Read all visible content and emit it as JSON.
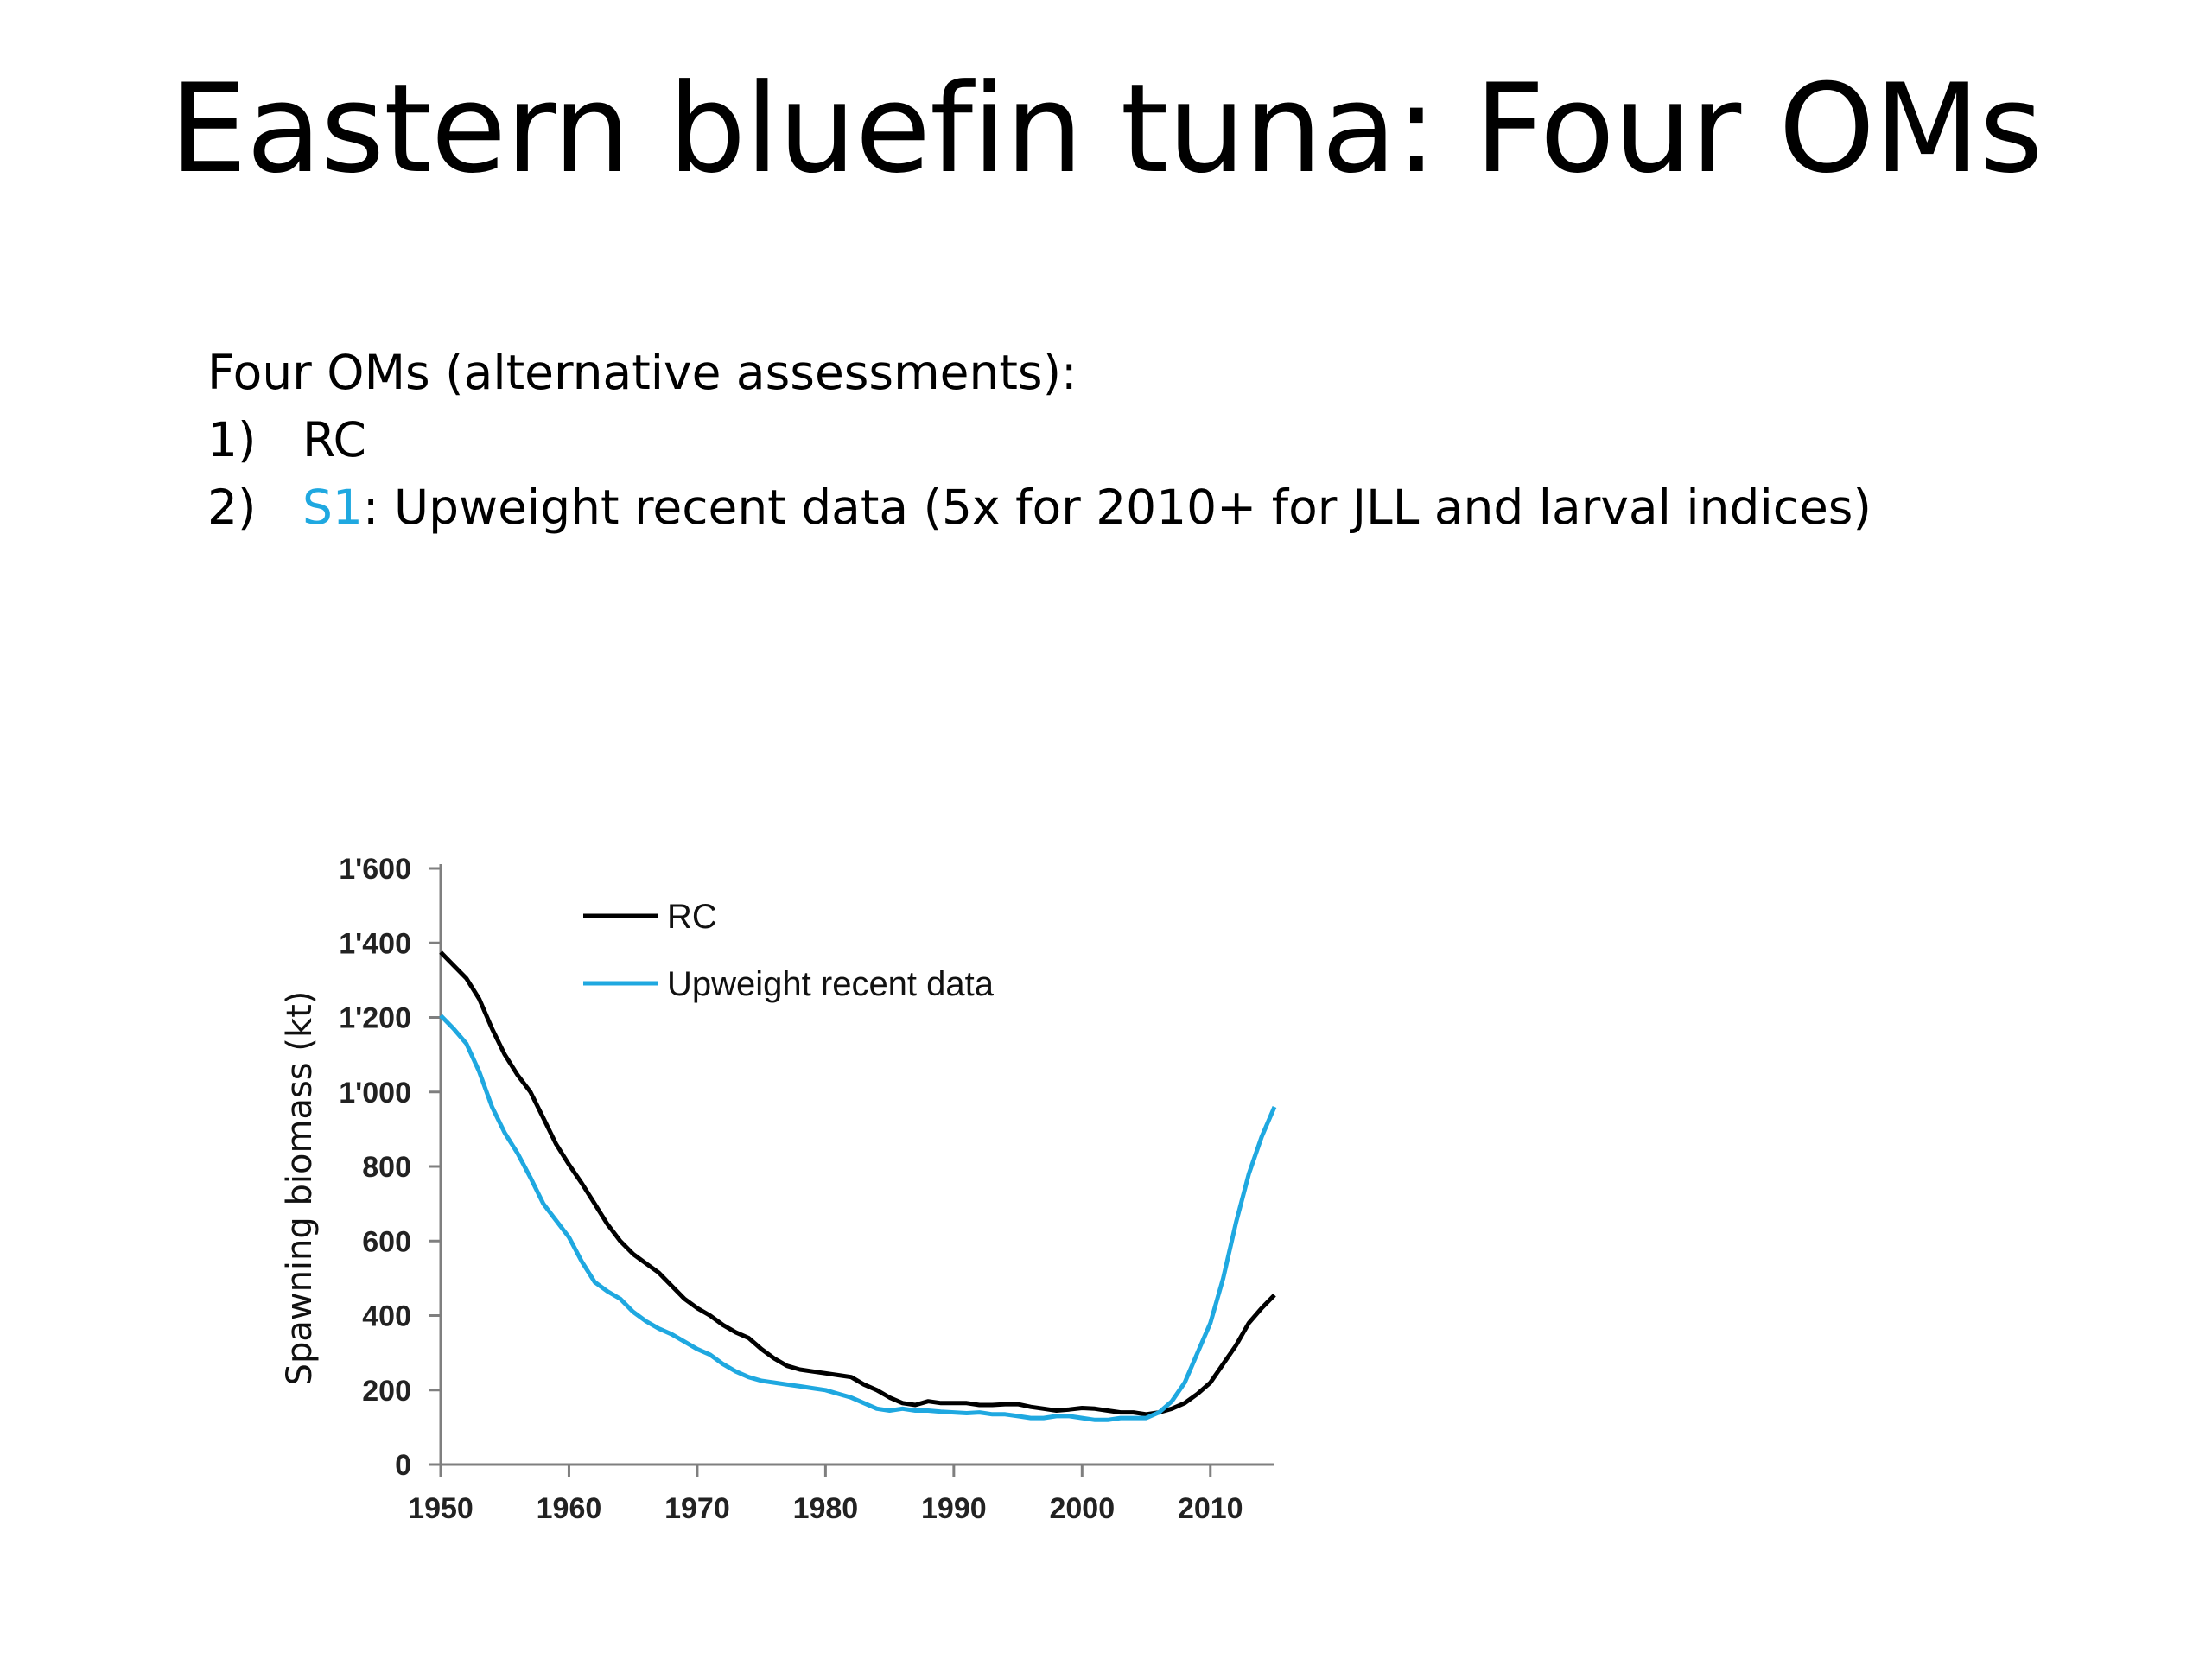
{
  "slide": {
    "title": "Eastern bluefin tuna: Four OMs",
    "intro": "Four OMs (alternative assessments):",
    "items": [
      {
        "num": "1)",
        "highlight": "",
        "text": "RC"
      },
      {
        "num": "2)",
        "highlight": "S1",
        "text": ": Upweight recent data (5x for 2010+ for JLL and larval indices)"
      }
    ]
  },
  "colors": {
    "rc": "#000000",
    "upweight": "#1fa8e0",
    "axis": "#7f7f7f",
    "highlight": "#1fa8e0"
  },
  "chart_data": {
    "type": "line",
    "title": "",
    "xlabel": "",
    "ylabel": "Spawning  biomass (kt)",
    "xlim": [
      1950,
      2015
    ],
    "ylim": [
      0,
      1600
    ],
    "xticks": [
      1950,
      1960,
      1970,
      1980,
      1990,
      2000,
      2010
    ],
    "xtick_labels": [
      "1950",
      "1960",
      "1970",
      "1980",
      "1990",
      "2000",
      "2010"
    ],
    "yticks": [
      0,
      200,
      400,
      600,
      800,
      1000,
      1200,
      1400,
      1600
    ],
    "ytick_labels": [
      "0",
      "200",
      "400",
      "600",
      "800",
      "1'000",
      "1'200",
      "1'400",
      "1'600"
    ],
    "grid": false,
    "legend": "top-center",
    "series": [
      {
        "name": "RC",
        "x": [
          1950,
          1951,
          1952,
          1953,
          1954,
          1955,
          1956,
          1957,
          1958,
          1959,
          1960,
          1961,
          1962,
          1963,
          1964,
          1965,
          1966,
          1967,
          1968,
          1969,
          1970,
          1971,
          1972,
          1973,
          1974,
          1975,
          1976,
          1977,
          1978,
          1979,
          1980,
          1981,
          1982,
          1983,
          1984,
          1985,
          1986,
          1987,
          1988,
          1989,
          1990,
          1991,
          1992,
          1993,
          1994,
          1995,
          1996,
          1997,
          1998,
          1999,
          2000,
          2001,
          2002,
          2003,
          2004,
          2005,
          2006,
          2007,
          2008,
          2009,
          2010,
          2011,
          2012,
          2013,
          2014,
          2015
        ],
        "values": [
          1375,
          1340,
          1305,
          1250,
          1170,
          1100,
          1045,
          1000,
          930,
          860,
          805,
          755,
          700,
          645,
          600,
          565,
          540,
          515,
          480,
          445,
          420,
          400,
          375,
          355,
          340,
          310,
          285,
          265,
          255,
          250,
          245,
          240,
          235,
          215,
          200,
          180,
          165,
          160,
          170,
          165,
          165,
          165,
          160,
          160,
          162,
          162,
          155,
          150,
          145,
          148,
          152,
          150,
          145,
          140,
          140,
          135,
          140,
          150,
          165,
          190,
          220,
          270,
          320,
          380,
          420,
          455
        ]
      },
      {
        "name": "Upweight recent data",
        "x": [
          1950,
          1951,
          1952,
          1953,
          1954,
          1955,
          1956,
          1957,
          1958,
          1959,
          1960,
          1961,
          1962,
          1963,
          1964,
          1965,
          1966,
          1967,
          1968,
          1969,
          1970,
          1971,
          1972,
          1973,
          1974,
          1975,
          1976,
          1977,
          1978,
          1979,
          1980,
          1981,
          1982,
          1983,
          1984,
          1985,
          1986,
          1987,
          1988,
          1989,
          1990,
          1991,
          1992,
          1993,
          1994,
          1995,
          1996,
          1997,
          1998,
          1999,
          2000,
          2001,
          2002,
          2003,
          2004,
          2005,
          2006,
          2007,
          2008,
          2009,
          2010,
          2011,
          2012,
          2013,
          2014,
          2015
        ],
        "values": [
          1205,
          1170,
          1130,
          1055,
          960,
          890,
          835,
          770,
          700,
          655,
          610,
          545,
          490,
          465,
          445,
          410,
          385,
          365,
          350,
          330,
          310,
          295,
          270,
          250,
          235,
          225,
          220,
          215,
          210,
          205,
          200,
          190,
          180,
          165,
          150,
          145,
          150,
          145,
          145,
          142,
          140,
          138,
          140,
          135,
          135,
          130,
          125,
          125,
          130,
          130,
          125,
          120,
          120,
          125,
          125,
          125,
          140,
          170,
          220,
          300,
          380,
          500,
          650,
          780,
          880,
          960
        ]
      }
    ]
  }
}
